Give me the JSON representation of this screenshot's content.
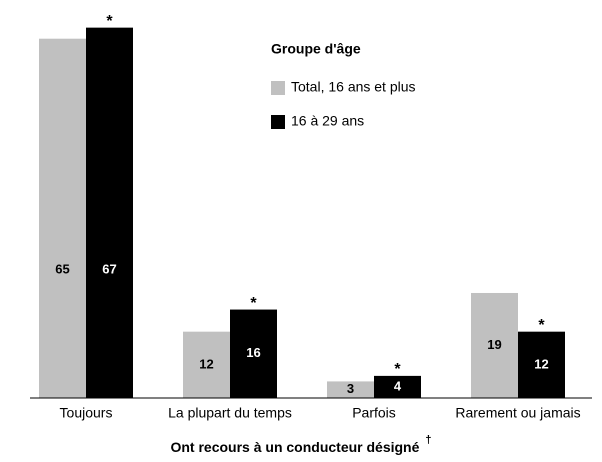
{
  "chart_data": {
    "type": "bar",
    "categories": [
      "Toujours",
      "La plupart du temps",
      "Parfois",
      "Rarement ou jamais"
    ],
    "series": [
      {
        "name": "Total, 16 ans et plus",
        "color": "#c0c0c0",
        "values": [
          65,
          12,
          3,
          19
        ]
      },
      {
        "name": "16 à 29 ans",
        "color": "#000000",
        "values": [
          67,
          16,
          4,
          12
        ],
        "markers": [
          "*",
          "*",
          "*",
          "*"
        ]
      }
    ],
    "legend_title": "Groupe d'âge",
    "xlabel": "Ont recours à un conducteur désigné",
    "xlabel_note": "†",
    "ylim": [
      0,
      72
    ]
  }
}
